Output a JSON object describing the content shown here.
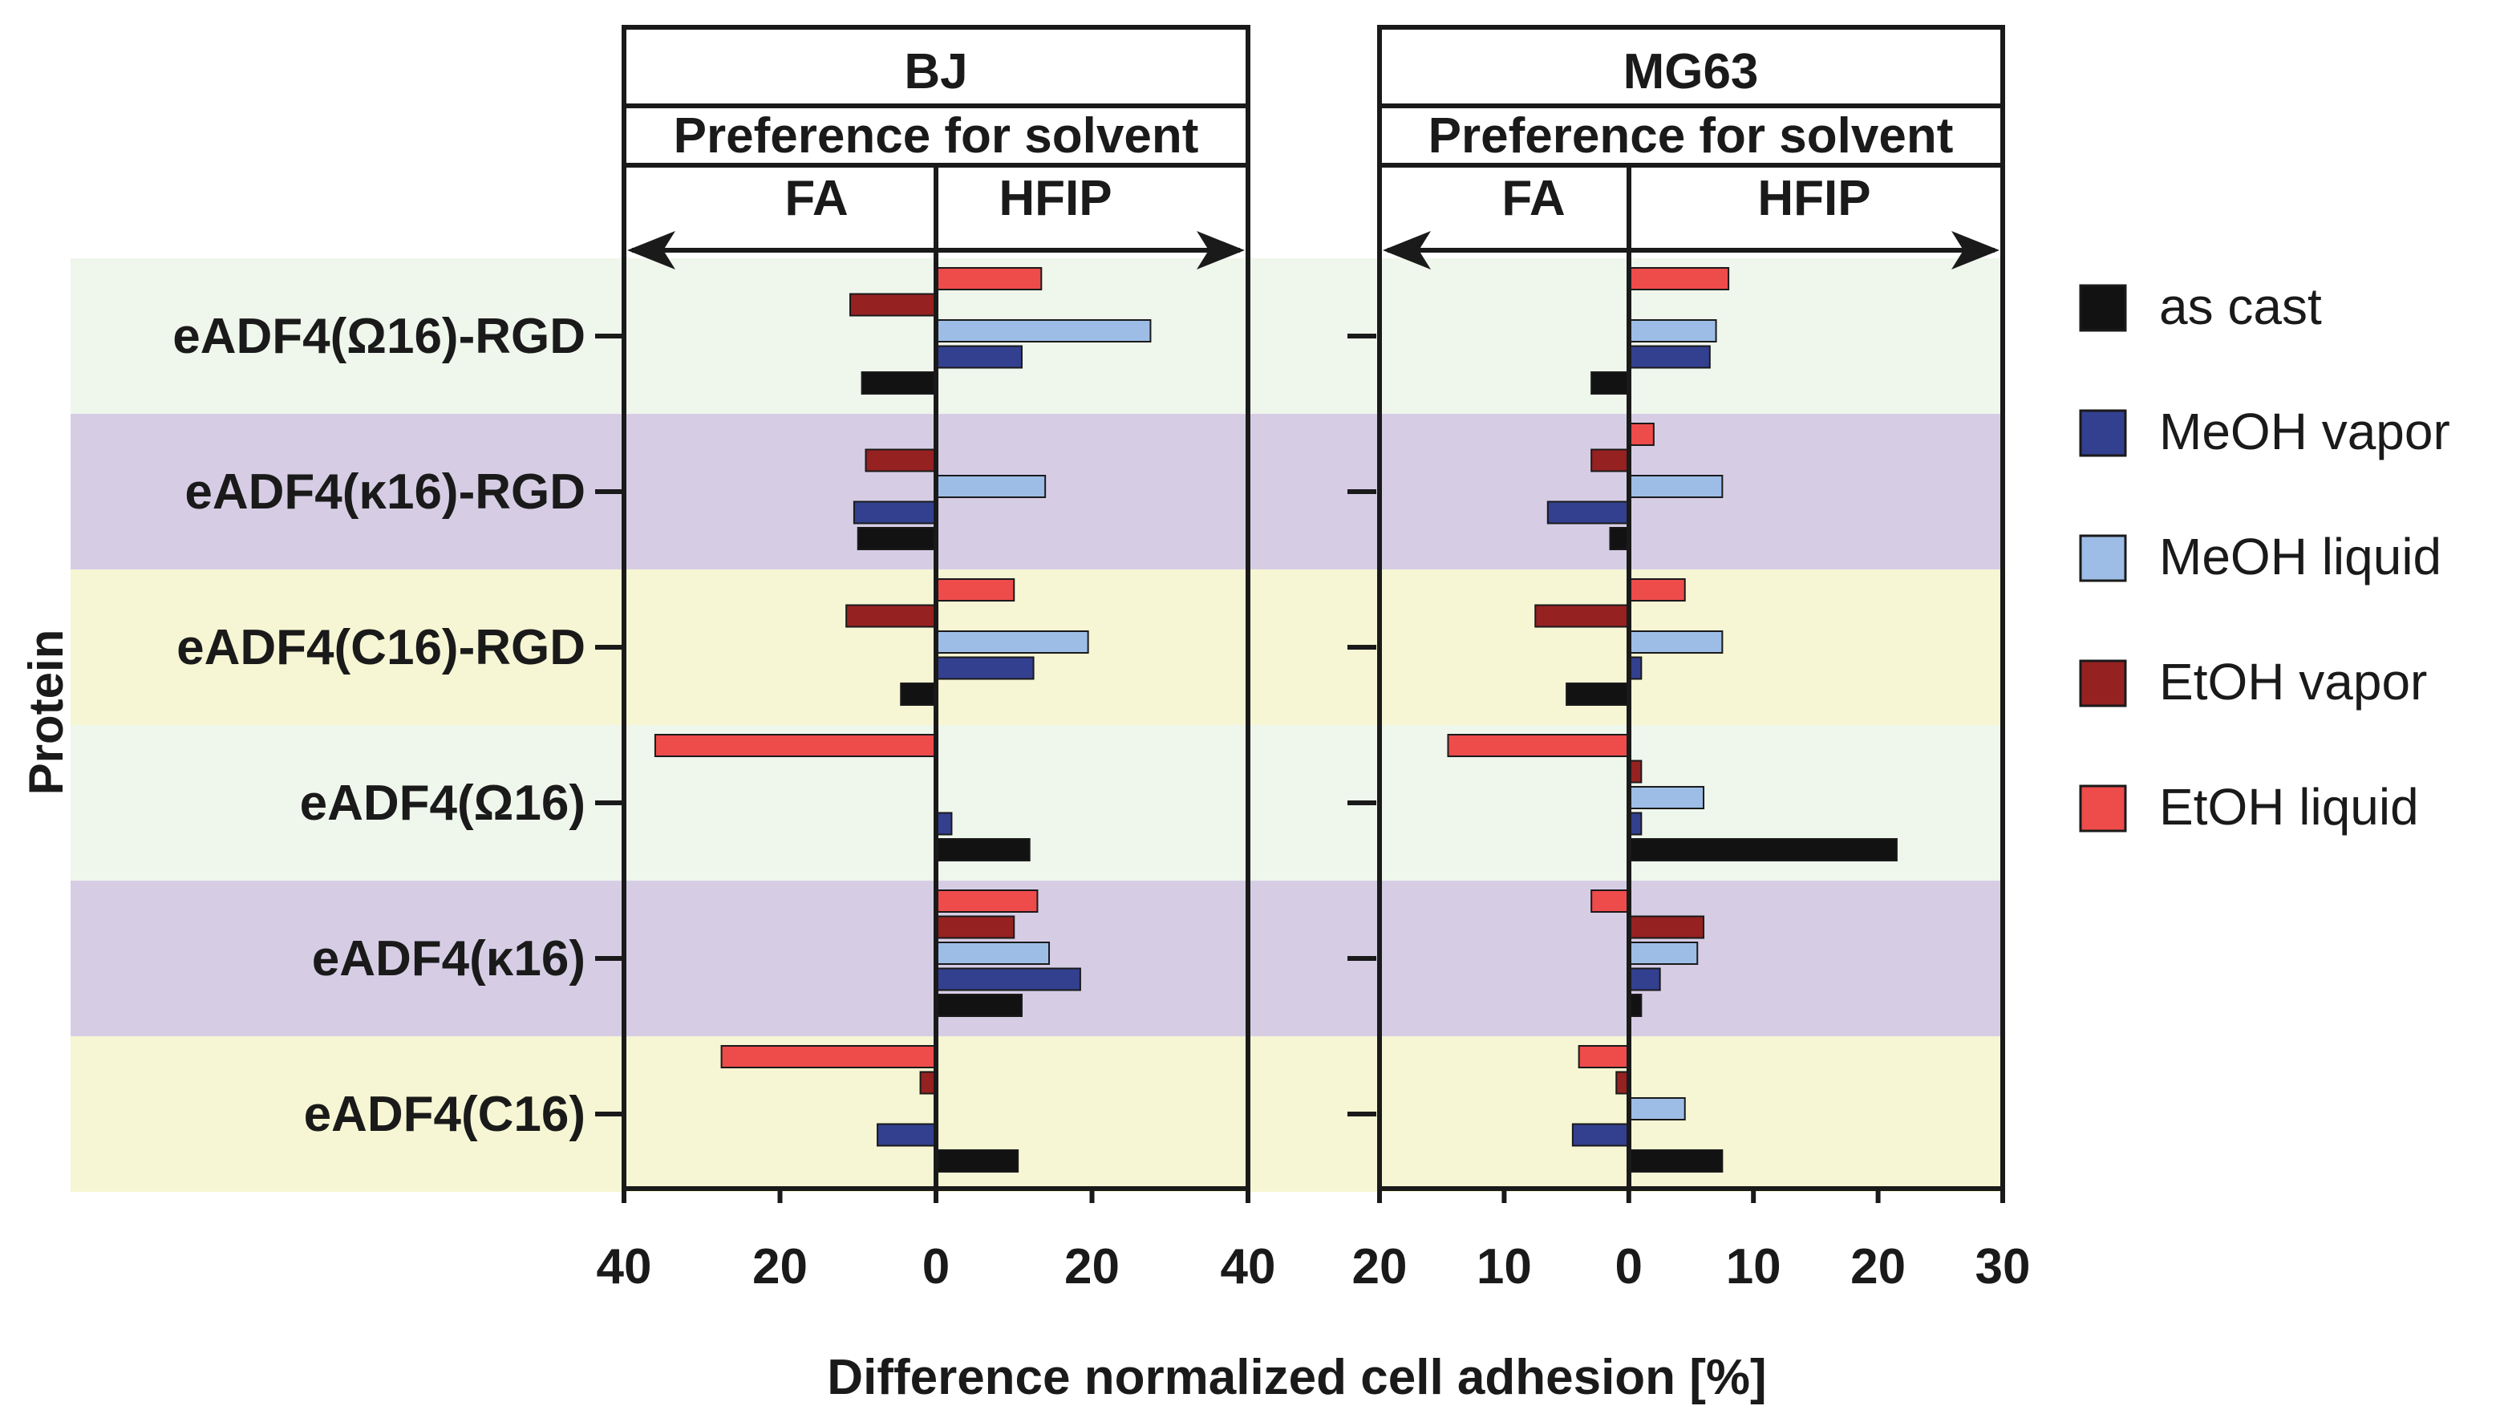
{
  "chart_data": {
    "type": "bar",
    "orientation": "horizontal",
    "xlabel": "Difference normalized cell adhesion [%]",
    "ylabel": "Protein",
    "header_subtitle": "Preference for solvent",
    "direction_labels": {
      "negative": "FA",
      "positive": "HFIP"
    },
    "categories": [
      "eADF4(Ω16)-RGD",
      "eADF4(κ16)-RGD",
      "eADF4(C16)-RGD",
      "eADF4(Ω16)",
      "eADF4(κ16)",
      "eADF4(C16)"
    ],
    "row_colors": [
      "#eff6ec",
      "#d6cde5",
      "#f6f6d4",
      "#eff6ec",
      "#d6cde5",
      "#f6f6d4"
    ],
    "series_meta": [
      {
        "name": "EtOH liquid",
        "color": "#ee4b4b"
      },
      {
        "name": "EtOH vapor",
        "color": "#962121"
      },
      {
        "name": "MeOH liquid",
        "color": "#9dbde6"
      },
      {
        "name": "MeOH vapor",
        "color": "#33408f"
      },
      {
        "name": "as cast",
        "color": "#121212"
      }
    ],
    "legend_order": [
      "as cast",
      "MeOH vapor",
      "MeOH liquid",
      "EtOH vapor",
      "EtOH liquid"
    ],
    "panels": [
      {
        "title": "BJ",
        "xlim": [
          -40,
          40
        ],
        "ticks": [
          -40,
          -20,
          0,
          20,
          40
        ],
        "tick_labels": [
          "40",
          "20",
          "0",
          "20",
          "40"
        ],
        "series": [
          {
            "name": "EtOH liquid",
            "values": [
              13.5,
              0,
              10,
              -36,
              13,
              -27.5
            ]
          },
          {
            "name": "EtOH vapor",
            "values": [
              -11,
              -9,
              -11.5,
              0,
              10,
              -2
            ]
          },
          {
            "name": "MeOH liquid",
            "values": [
              27.5,
              14,
              19.5,
              0,
              14.5,
              0
            ]
          },
          {
            "name": "MeOH vapor",
            "values": [
              11,
              -10.5,
              12.5,
              2,
              18.5,
              -7.5
            ]
          },
          {
            "name": "as cast",
            "values": [
              -9.5,
              -10,
              -4.5,
              12,
              11,
              10.5
            ]
          }
        ]
      },
      {
        "title": "MG63",
        "xlim": [
          -20,
          30
        ],
        "ticks": [
          -20,
          -10,
          0,
          10,
          20,
          30
        ],
        "tick_labels": [
          "20",
          "10",
          "0",
          "10",
          "20",
          "30"
        ],
        "series": [
          {
            "name": "EtOH liquid",
            "values": [
              8,
              2,
              4.5,
              -14.5,
              -3,
              -4
            ]
          },
          {
            "name": "EtOH vapor",
            "values": [
              0,
              -3,
              -7.5,
              1,
              6,
              -1
            ]
          },
          {
            "name": "MeOH liquid",
            "values": [
              7,
              7.5,
              7.5,
              6,
              5.5,
              4.5
            ]
          },
          {
            "name": "MeOH vapor",
            "values": [
              6.5,
              -6.5,
              1,
              1,
              2.5,
              -4.5
            ]
          },
          {
            "name": "as cast",
            "values": [
              -3,
              -1.5,
              -5,
              21.5,
              1,
              7.5
            ]
          }
        ]
      }
    ]
  }
}
